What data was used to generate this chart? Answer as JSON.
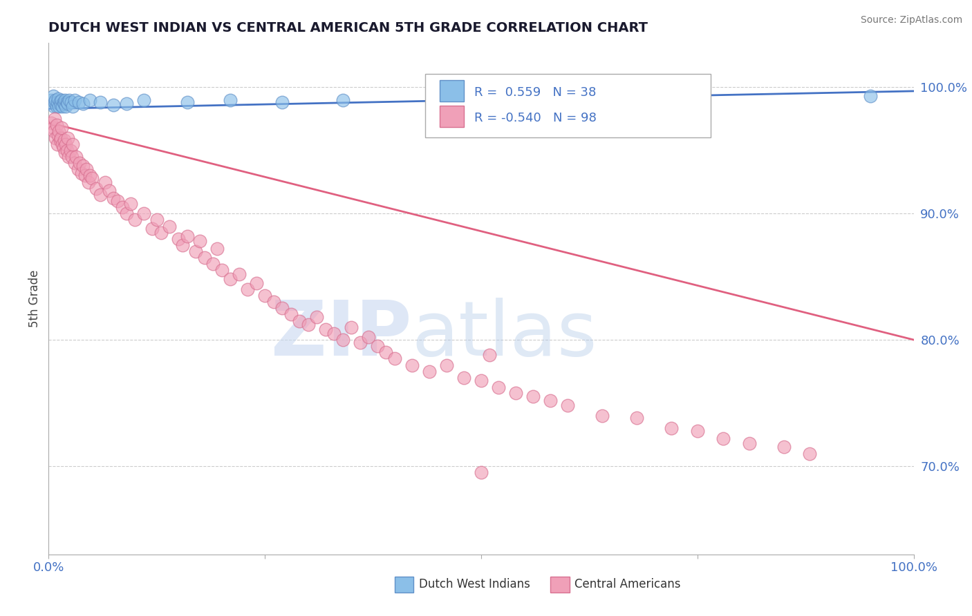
{
  "title": "DUTCH WEST INDIAN VS CENTRAL AMERICAN 5TH GRADE CORRELATION CHART",
  "source": "Source: ZipAtlas.com",
  "ylabel": "5th Grade",
  "xlim": [
    0.0,
    1.0
  ],
  "ylim": [
    0.63,
    1.035
  ],
  "ytick_labels": [
    "70.0%",
    "80.0%",
    "90.0%",
    "100.0%"
  ],
  "ytick_values": [
    0.7,
    0.8,
    0.9,
    1.0
  ],
  "blue_scatter_x": [
    0.003,
    0.005,
    0.006,
    0.007,
    0.008,
    0.009,
    0.01,
    0.011,
    0.012,
    0.013,
    0.014,
    0.015,
    0.016,
    0.017,
    0.018,
    0.019,
    0.02,
    0.021,
    0.022,
    0.024,
    0.026,
    0.028,
    0.03,
    0.035,
    0.04,
    0.048,
    0.06,
    0.075,
    0.09,
    0.11,
    0.16,
    0.21,
    0.27,
    0.34,
    0.5,
    0.55,
    0.685,
    0.95
  ],
  "blue_scatter_y": [
    0.99,
    0.993,
    0.985,
    0.988,
    0.99,
    0.985,
    0.988,
    0.991,
    0.985,
    0.989,
    0.986,
    0.99,
    0.985,
    0.988,
    0.987,
    0.99,
    0.985,
    0.988,
    0.987,
    0.99,
    0.988,
    0.985,
    0.99,
    0.988,
    0.987,
    0.99,
    0.988,
    0.986,
    0.987,
    0.99,
    0.988,
    0.99,
    0.988,
    0.99,
    0.988,
    0.99,
    0.991,
    0.993
  ],
  "pink_scatter_x": [
    0.003,
    0.005,
    0.006,
    0.007,
    0.008,
    0.009,
    0.01,
    0.011,
    0.012,
    0.013,
    0.014,
    0.015,
    0.016,
    0.017,
    0.018,
    0.019,
    0.02,
    0.021,
    0.022,
    0.023,
    0.025,
    0.027,
    0.028,
    0.03,
    0.032,
    0.034,
    0.036,
    0.038,
    0.04,
    0.042,
    0.044,
    0.046,
    0.048,
    0.05,
    0.055,
    0.06,
    0.065,
    0.07,
    0.075,
    0.08,
    0.085,
    0.09,
    0.095,
    0.1,
    0.11,
    0.12,
    0.125,
    0.13,
    0.14,
    0.15,
    0.155,
    0.16,
    0.17,
    0.175,
    0.18,
    0.19,
    0.195,
    0.2,
    0.21,
    0.22,
    0.23,
    0.24,
    0.25,
    0.26,
    0.27,
    0.28,
    0.29,
    0.3,
    0.31,
    0.32,
    0.33,
    0.34,
    0.35,
    0.36,
    0.37,
    0.38,
    0.39,
    0.4,
    0.42,
    0.44,
    0.46,
    0.48,
    0.5,
    0.52,
    0.54,
    0.56,
    0.58,
    0.6,
    0.64,
    0.68,
    0.72,
    0.75,
    0.78,
    0.81,
    0.85,
    0.88,
    0.51,
    0.5
  ],
  "pink_scatter_y": [
    0.972,
    0.968,
    0.965,
    0.975,
    0.96,
    0.97,
    0.955,
    0.962,
    0.965,
    0.958,
    0.96,
    0.968,
    0.955,
    0.952,
    0.958,
    0.948,
    0.955,
    0.95,
    0.96,
    0.945,
    0.95,
    0.945,
    0.955,
    0.94,
    0.945,
    0.935,
    0.94,
    0.932,
    0.938,
    0.93,
    0.935,
    0.925,
    0.93,
    0.928,
    0.92,
    0.915,
    0.925,
    0.918,
    0.912,
    0.91,
    0.905,
    0.9,
    0.908,
    0.895,
    0.9,
    0.888,
    0.895,
    0.885,
    0.89,
    0.88,
    0.875,
    0.882,
    0.87,
    0.878,
    0.865,
    0.86,
    0.872,
    0.855,
    0.848,
    0.852,
    0.84,
    0.845,
    0.835,
    0.83,
    0.825,
    0.82,
    0.815,
    0.812,
    0.818,
    0.808,
    0.805,
    0.8,
    0.81,
    0.798,
    0.802,
    0.795,
    0.79,
    0.785,
    0.78,
    0.775,
    0.78,
    0.77,
    0.768,
    0.762,
    0.758,
    0.755,
    0.752,
    0.748,
    0.74,
    0.738,
    0.73,
    0.728,
    0.722,
    0.718,
    0.715,
    0.71,
    0.788,
    0.695
  ],
  "blue_line_y_start": 0.983,
  "blue_line_y_end": 0.997,
  "pink_line_y_start": 0.972,
  "pink_line_y_end": 0.8,
  "background_color": "#ffffff",
  "grid_color": "#cccccc",
  "title_color": "#1a1a2e",
  "scatter_blue_color": "#8bbfe8",
  "scatter_blue_edge": "#6090c8",
  "scatter_pink_color": "#f0a0b8",
  "scatter_pink_edge": "#d87090",
  "line_blue_color": "#4472c4",
  "line_pink_color": "#e06080",
  "legend_blue_R": "0.559",
  "legend_blue_N": "38",
  "legend_pink_R": "-0.540",
  "legend_pink_N": "98",
  "legend_label_blue": "Dutch West Indians",
  "legend_label_pink": "Central Americans",
  "legend_text_color": "#4472c4",
  "watermark_zip_color": "#c8d8f0",
  "watermark_atlas_color": "#b0c8e8"
}
